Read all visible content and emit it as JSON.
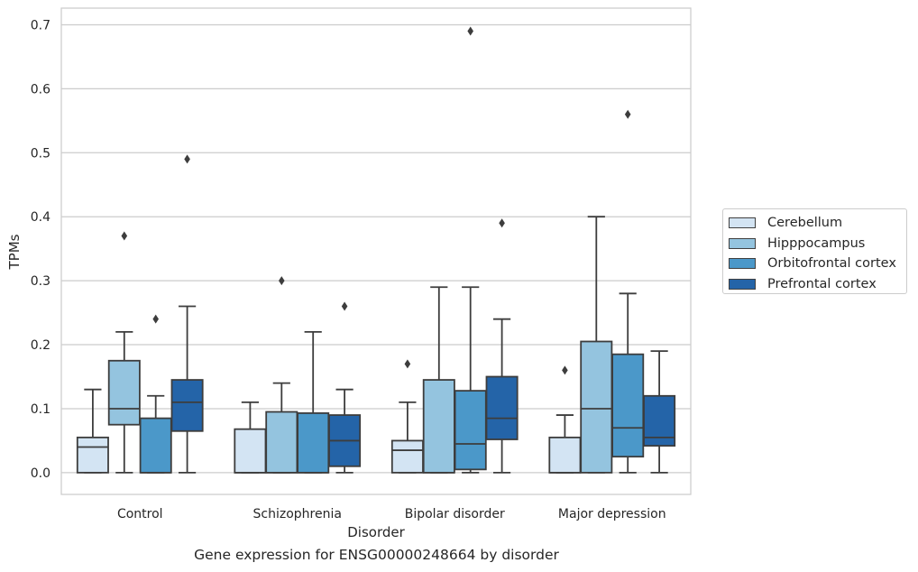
{
  "chart_data": {
    "type": "boxplot",
    "caption": "Gene expression for ENSG00000248664 by disorder",
    "xlabel": "Disorder",
    "ylabel": "TPMs",
    "ylim": [
      -0.034,
      0.726
    ],
    "yticks": [
      "0.0",
      "0.1",
      "0.2",
      "0.3",
      "0.4",
      "0.5",
      "0.6",
      "0.7"
    ],
    "grid": true,
    "legend_position": "right",
    "categories": [
      "Control",
      "Schizophrenia",
      "Bipolar disorder",
      "Major depression"
    ],
    "series": [
      {
        "name": "Cerebellum",
        "color": "#d3e4f3",
        "boxes": [
          {
            "whislo": 0.0,
            "q1": 0.0,
            "med": 0.04,
            "q3": 0.055,
            "whishi": 0.13,
            "fliers": []
          },
          {
            "whislo": 0.0,
            "q1": 0.0,
            "med": 0.0,
            "q3": 0.068,
            "whishi": 0.11,
            "fliers": []
          },
          {
            "whislo": 0.0,
            "q1": 0.0,
            "med": 0.035,
            "q3": 0.05,
            "whishi": 0.11,
            "fliers": [
              0.17
            ]
          },
          {
            "whislo": 0.0,
            "q1": 0.0,
            "med": 0.0,
            "q3": 0.055,
            "whishi": 0.09,
            "fliers": [
              0.16
            ]
          }
        ]
      },
      {
        "name": "Hipppocampus",
        "color": "#94c4df",
        "boxes": [
          {
            "whislo": 0.0,
            "q1": 0.075,
            "med": 0.1,
            "q3": 0.175,
            "whishi": 0.22,
            "fliers": [
              0.37
            ]
          },
          {
            "whislo": 0.0,
            "q1": 0.0,
            "med": 0.0,
            "q3": 0.095,
            "whishi": 0.14,
            "fliers": [
              0.3
            ]
          },
          {
            "whislo": 0.0,
            "q1": 0.0,
            "med": 0.0,
            "q3": 0.145,
            "whishi": 0.29,
            "fliers": []
          },
          {
            "whislo": 0.0,
            "q1": 0.0,
            "med": 0.1,
            "q3": 0.205,
            "whishi": 0.4,
            "fliers": []
          }
        ]
      },
      {
        "name": "Orbitofrontal cortex",
        "color": "#4b98c9",
        "boxes": [
          {
            "whislo": 0.0,
            "q1": 0.0,
            "med": 0.0,
            "q3": 0.085,
            "whishi": 0.12,
            "fliers": [
              0.24
            ]
          },
          {
            "whislo": 0.0,
            "q1": 0.0,
            "med": 0.0,
            "q3": 0.093,
            "whishi": 0.22,
            "fliers": []
          },
          {
            "whislo": 0.0,
            "q1": 0.005,
            "med": 0.045,
            "q3": 0.128,
            "whishi": 0.29,
            "fliers": [
              0.69
            ]
          },
          {
            "whislo": 0.0,
            "q1": 0.025,
            "med": 0.07,
            "q3": 0.185,
            "whishi": 0.28,
            "fliers": [
              0.56
            ]
          }
        ]
      },
      {
        "name": "Prefrontal cortex",
        "color": "#2464a8",
        "boxes": [
          {
            "whislo": 0.0,
            "q1": 0.065,
            "med": 0.11,
            "q3": 0.145,
            "whishi": 0.26,
            "fliers": [
              0.49
            ]
          },
          {
            "whislo": 0.0,
            "q1": 0.01,
            "med": 0.05,
            "q3": 0.09,
            "whishi": 0.13,
            "fliers": [
              0.26
            ]
          },
          {
            "whislo": 0.0,
            "q1": 0.052,
            "med": 0.085,
            "q3": 0.15,
            "whishi": 0.24,
            "fliers": [
              0.39
            ]
          },
          {
            "whislo": 0.0,
            "q1": 0.042,
            "med": 0.055,
            "q3": 0.12,
            "whishi": 0.19,
            "fliers": []
          }
        ]
      }
    ]
  }
}
